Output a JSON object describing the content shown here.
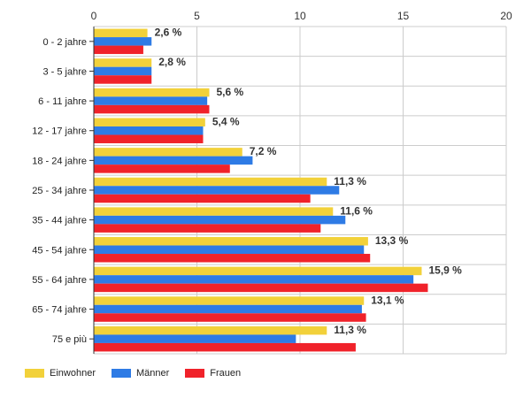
{
  "chart_data": {
    "type": "bar",
    "orientation": "horizontal",
    "title": "",
    "xlabel": "",
    "ylabel": "",
    "xlim": [
      0,
      20
    ],
    "x_ticks": [
      0,
      5,
      10,
      15,
      20
    ],
    "grid": true,
    "legend_position": "bottom-left",
    "categories": [
      "0 - 2 jahre",
      "3 - 5 jahre",
      "6 - 11 jahre",
      "12 - 17 jahre",
      "18 - 24 jahre",
      "25 - 34 jahre",
      "35 - 44 jahre",
      "45 - 54 jahre",
      "55 - 64 jahre",
      "65 - 74 jahre",
      "75 e più"
    ],
    "series": [
      {
        "name": "Einwohner",
        "color": "#f2d13a",
        "values": [
          2.6,
          2.8,
          5.6,
          5.4,
          7.2,
          11.3,
          11.6,
          13.3,
          15.9,
          13.1,
          11.3
        ]
      },
      {
        "name": "Männer",
        "color": "#2e7be5",
        "values": [
          2.8,
          2.8,
          5.5,
          5.3,
          7.7,
          11.9,
          12.2,
          13.1,
          15.5,
          13.0,
          9.8
        ]
      },
      {
        "name": "Frauen",
        "color": "#f0222a",
        "values": [
          2.4,
          2.8,
          5.6,
          5.3,
          6.6,
          10.5,
          11.0,
          13.4,
          16.2,
          13.2,
          12.7
        ]
      }
    ],
    "data_labels": [
      "2,6 %",
      "2,8 %",
      "5,6 %",
      "5,4 %",
      "7,2 %",
      "11,3 %",
      "11,6 %",
      "13,3 %",
      "15,9 %",
      "13,1 %",
      "11,3 %"
    ]
  }
}
